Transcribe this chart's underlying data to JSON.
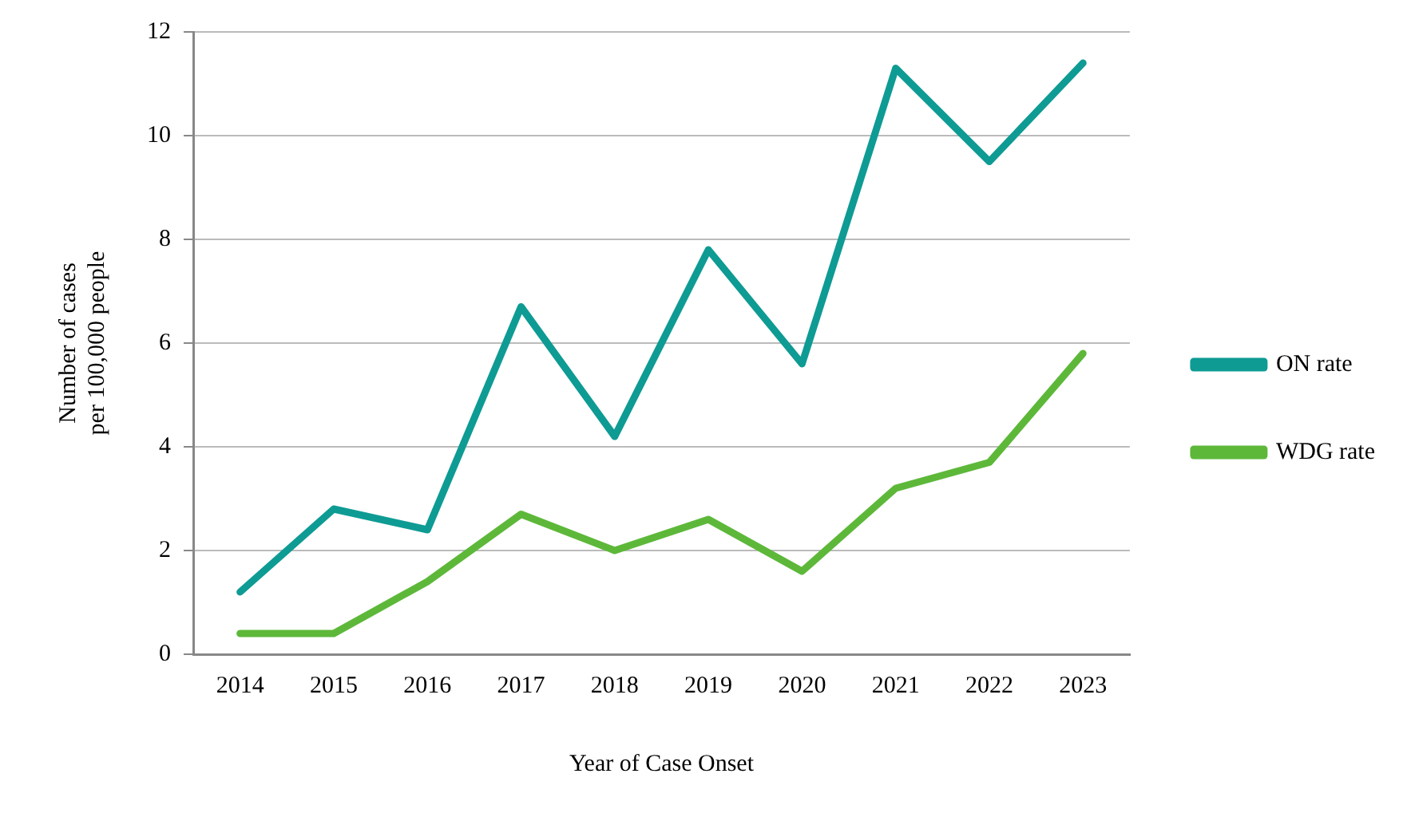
{
  "chart_data": {
    "type": "line",
    "xlabel": "Year of Case Onset",
    "ylabel": "Number of cases\nper 100,000 people",
    "categories": [
      "2014",
      "2015",
      "2016",
      "2017",
      "2018",
      "2019",
      "2020",
      "2021",
      "2022",
      "2023"
    ],
    "series": [
      {
        "name": "ON rate",
        "color": "#0e9b94",
        "values": [
          1.2,
          2.8,
          2.4,
          6.7,
          4.2,
          7.8,
          5.6,
          11.3,
          9.5,
          11.4
        ]
      },
      {
        "name": "WDG rate",
        "color": "#5db83a",
        "values": [
          0.4,
          0.4,
          1.4,
          2.7,
          2.0,
          2.6,
          1.6,
          3.2,
          3.7,
          5.8
        ]
      }
    ],
    "ylim": [
      0,
      12
    ],
    "yticks": [
      0,
      2,
      4,
      6,
      8,
      10,
      12
    ],
    "grid": "y",
    "legend": "right",
    "marker": "none",
    "line_style": "solid"
  }
}
